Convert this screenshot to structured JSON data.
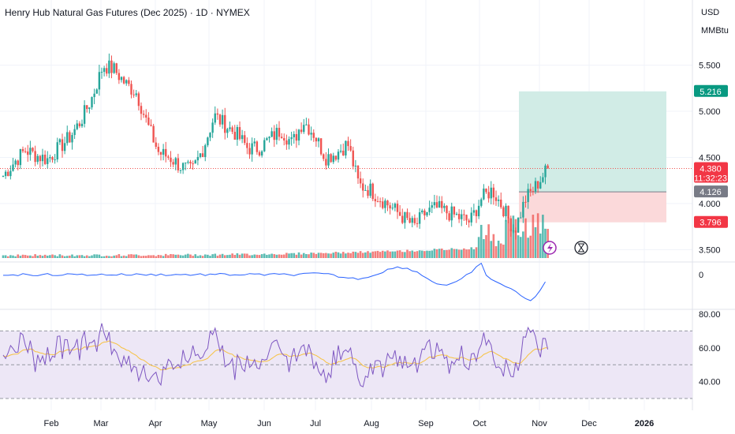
{
  "header": {
    "title": "Henry Hub Natural Gas Futures (Dec 2025) · 1D · NYMEX"
  },
  "price_axis": {
    "currency": "USD",
    "unit": "MMBtu",
    "ticks": [
      "5.500",
      "5.000",
      "4.500",
      "4.000",
      "3.500"
    ]
  },
  "badges": {
    "target": "5.216",
    "last_price": "4.380",
    "countdown": "11:32:23",
    "entry": "4.126",
    "stop": "3.796"
  },
  "colors": {
    "up": "#26a69a",
    "down": "#ef5350",
    "macd": "#2962ff",
    "rsi": "#7e57c2",
    "rsi_ma": "#f7c242",
    "profit_zone": "#d1ece6",
    "loss_zone": "#fbd9da",
    "rsi_band": "#ede7f6"
  },
  "osc_axis": {
    "zero_label": "0"
  },
  "rsi_axis": {
    "ticks": [
      "80.00",
      "60.00",
      "40.00"
    ]
  },
  "time_axis": {
    "labels": [
      "Feb",
      "Mar",
      "Apr",
      "May",
      "Jun",
      "Jul",
      "Aug",
      "Sep",
      "Oct",
      "Nov",
      "Dec",
      "2026"
    ]
  },
  "icons": {
    "lightning": "lightning-icon",
    "hourglass": "hourglass-icon"
  },
  "chart_data": {
    "type": "candlestick",
    "title": "Henry Hub Natural Gas Futures (Dec 2025) · 1D · NYMEX",
    "price_range": [
      3.4,
      5.95
    ],
    "closes_by_month": {
      "Jan": [
        4.3,
        4.45,
        4.58
      ],
      "Feb": [
        4.52,
        4.48,
        4.6,
        4.72,
        4.9
      ],
      "Mar": [
        5.15,
        5.5,
        5.45,
        5.3,
        5.2
      ],
      "Apr": [
        4.85,
        4.55,
        4.5,
        4.4,
        4.35
      ],
      "May": [
        4.6,
        4.95,
        4.85,
        4.75,
        4.6
      ],
      "Jun": [
        4.6,
        4.7,
        4.8,
        4.65,
        4.9
      ],
      "Jul": [
        4.75,
        4.5,
        4.55,
        4.65,
        4.2
      ],
      "Aug": [
        4.15,
        4.05,
        3.95,
        3.85,
        3.75
      ],
      "Sep": [
        3.9,
        3.95,
        3.9,
        3.85,
        3.8
      ],
      "Oct": [
        4.05,
        4.15,
        3.95,
        3.7,
        4.05
      ],
      "Nov": [
        4.2,
        4.38
      ]
    },
    "last_price": 4.38,
    "position": {
      "entry": 4.126,
      "target": 5.216,
      "stop": 3.796
    },
    "rsi_range": [
      30,
      80
    ],
    "rsi_levels": [
      70,
      50,
      30
    ],
    "rsi_ticks": [
      80,
      60,
      40
    ],
    "x_labels": [
      "Feb",
      "Mar",
      "Apr",
      "May",
      "Jun",
      "Jul",
      "Aug",
      "Sep",
      "Oct",
      "Nov",
      "Dec",
      "2026"
    ],
    "grid": true
  }
}
